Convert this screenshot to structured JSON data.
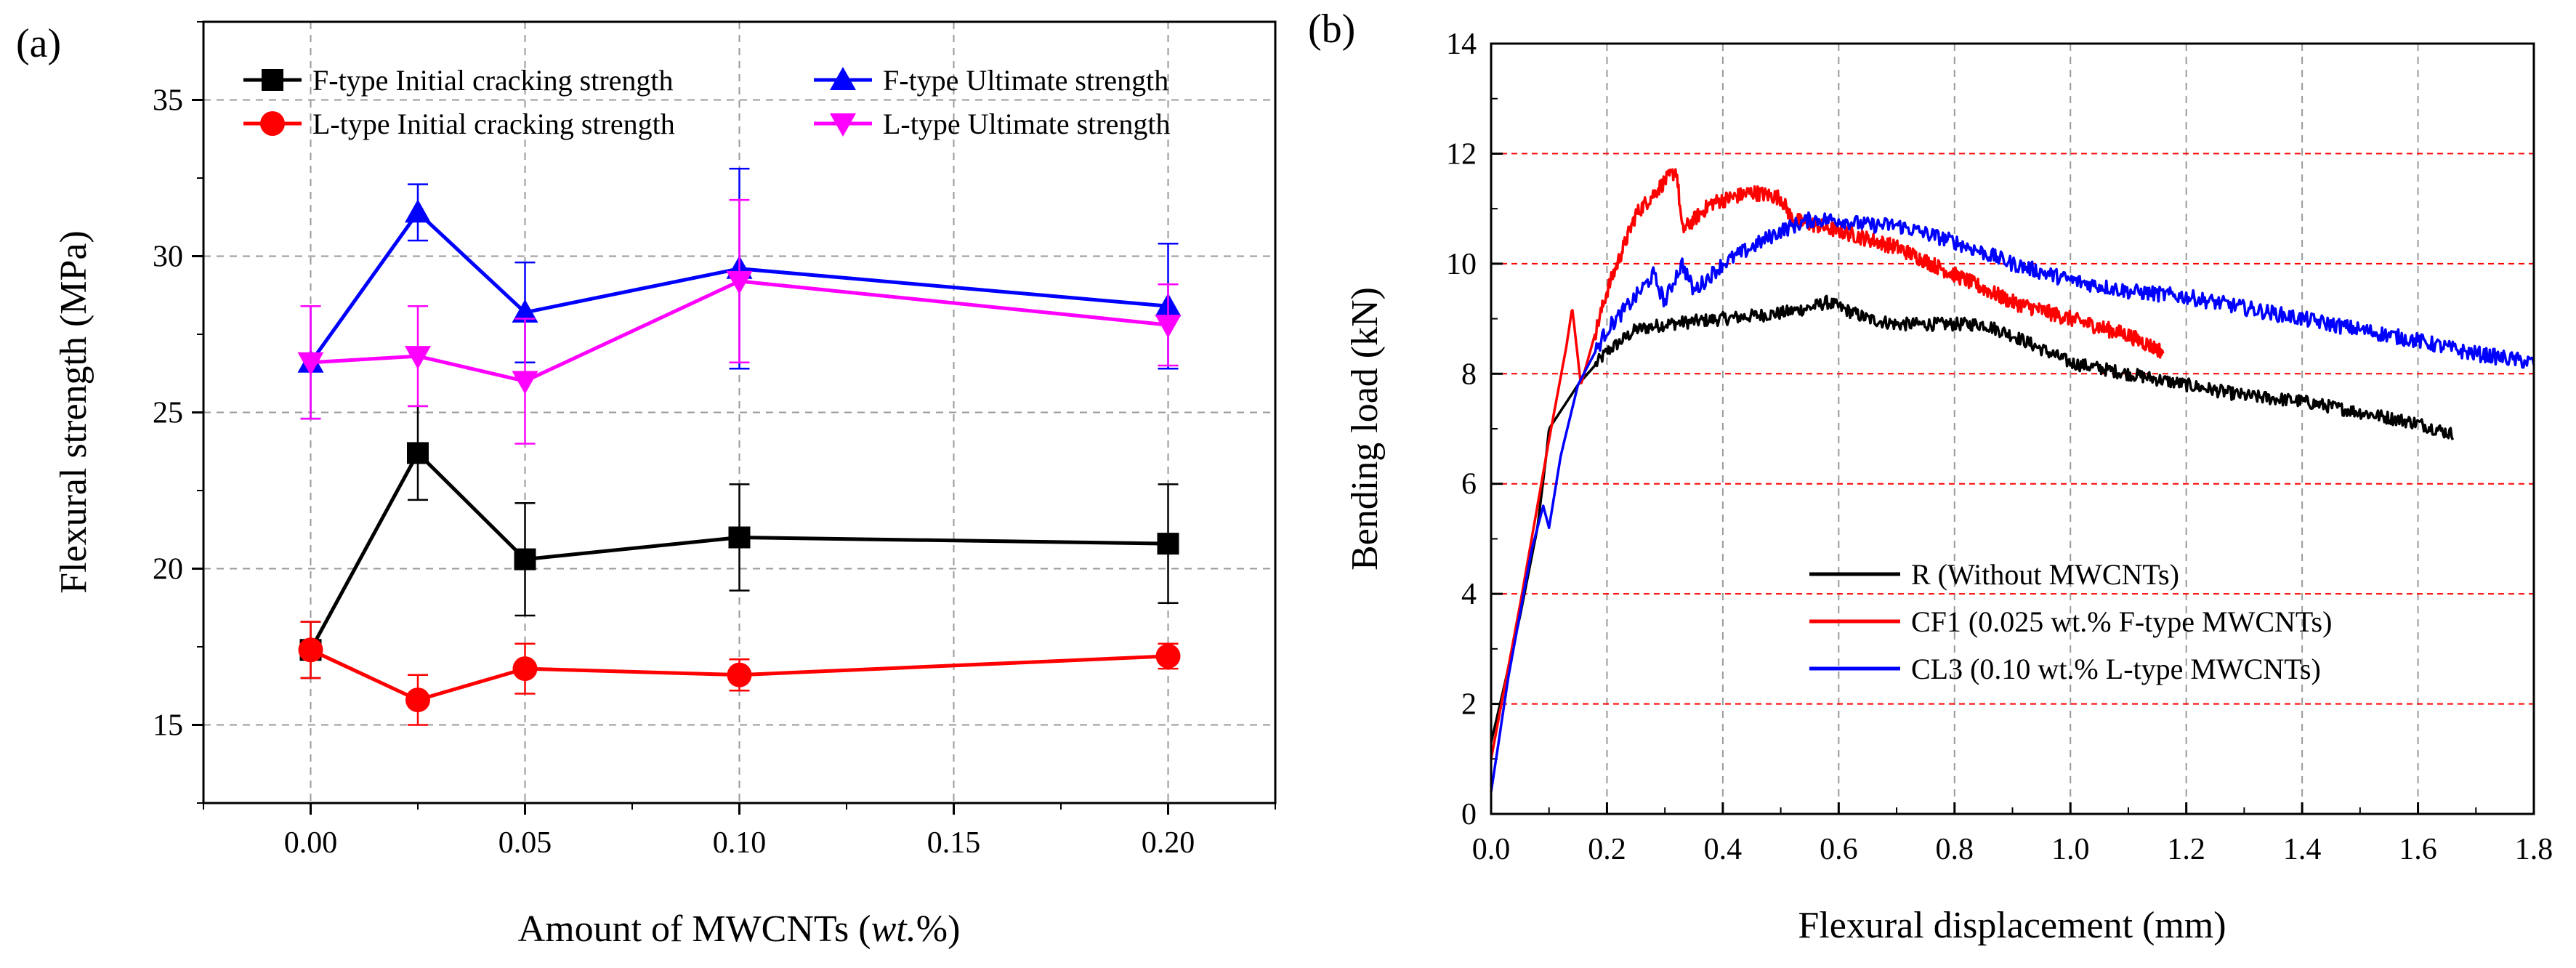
{
  "chart_data": [
    {
      "panel_label": "(a)",
      "type": "line",
      "xlabel_prefix": "Amount of MWCNTs (",
      "xlabel_italic": "wt.",
      "xlabel_suffix": "%)",
      "ylabel": "Flexural strength (MPa)",
      "xlim": [
        -0.025,
        0.225
      ],
      "ylim": [
        12.5,
        37.5
      ],
      "xticks": [
        0.0,
        0.05,
        0.1,
        0.15,
        0.2
      ],
      "xtick_labels": [
        "0.00",
        "0.05",
        "0.10",
        "0.15",
        "0.20"
      ],
      "yticks": [
        15,
        20,
        25,
        30,
        35
      ],
      "ytick_labels": [
        "15",
        "20",
        "25",
        "30",
        "35"
      ],
      "grid": true,
      "legend_position": "top",
      "x": [
        0.0,
        0.025,
        0.05,
        0.1,
        0.2
      ],
      "series": [
        {
          "name": "F-type Initial cracking strength",
          "color": "#000000",
          "marker": "square",
          "values": [
            17.4,
            23.7,
            20.3,
            21.0,
            20.8
          ],
          "errors": [
            0.9,
            1.5,
            1.8,
            1.7,
            1.9
          ]
        },
        {
          "name": "L-type Initial cracking strength",
          "color": "#ff0000",
          "marker": "circle",
          "values": [
            17.4,
            15.8,
            16.8,
            16.6,
            17.2
          ],
          "errors": [
            0.9,
            0.8,
            0.8,
            0.5,
            0.4
          ]
        },
        {
          "name": "F-type Ultimate strength",
          "color": "#0000ff",
          "marker": "triangle-up",
          "values": [
            26.6,
            31.4,
            28.2,
            29.6,
            28.4
          ],
          "errors": [
            1.8,
            0.9,
            1.6,
            3.2,
            2.0
          ]
        },
        {
          "name": "L-type Ultimate strength",
          "color": "#ff00ff",
          "marker": "triangle-down",
          "values": [
            26.6,
            26.8,
            26.0,
            29.2,
            27.8
          ],
          "errors": [
            1.8,
            1.6,
            2.0,
            2.6,
            1.3
          ]
        }
      ]
    },
    {
      "panel_label": "(b)",
      "type": "line",
      "xlabel": "Flexural displacement (mm)",
      "ylabel": "Bending load (kN)",
      "xlim": [
        0.0,
        1.8
      ],
      "ylim": [
        0,
        14
      ],
      "xticks": [
        0.0,
        0.2,
        0.4,
        0.6,
        0.8,
        1.0,
        1.2,
        1.4,
        1.6,
        1.8
      ],
      "xtick_labels": [
        "0.0",
        "0.2",
        "0.4",
        "0.6",
        "0.8",
        "1.0",
        "1.2",
        "1.4",
        "1.6",
        "1.8"
      ],
      "yticks": [
        0,
        2,
        4,
        6,
        8,
        10,
        12,
        14
      ],
      "ytick_labels": [
        "0",
        "2",
        "4",
        "6",
        "8",
        "10",
        "12",
        "14"
      ],
      "grid": true,
      "legend_position": "bottom-right",
      "series": [
        {
          "name": "R (Without MWCNTs)",
          "color": "#000000",
          "noise": 0.12,
          "x": [
            0.0,
            0.02,
            0.05,
            0.08,
            0.095,
            0.1,
            0.15,
            0.2,
            0.25,
            0.3,
            0.4,
            0.5,
            0.55,
            0.58,
            0.65,
            0.7,
            0.8,
            0.85,
            0.9,
            1.0,
            1.1,
            1.2,
            1.3,
            1.4,
            1.5,
            1.6,
            1.66
          ],
          "y": [
            1.3,
            2.2,
            3.6,
            5.2,
            6.5,
            7.0,
            7.8,
            8.4,
            8.8,
            8.9,
            9.0,
            9.1,
            9.2,
            9.3,
            9.0,
            8.9,
            8.9,
            8.9,
            8.7,
            8.2,
            8.0,
            7.8,
            7.6,
            7.5,
            7.3,
            7.1,
            6.9
          ]
        },
        {
          "name": "CF1 (0.025 wt.% F-type MWCNTs)",
          "color": "#ff0000",
          "noise": 0.14,
          "x": [
            0.0,
            0.05,
            0.1,
            0.13,
            0.14,
            0.155,
            0.2,
            0.25,
            0.3,
            0.32,
            0.33,
            0.38,
            0.45,
            0.5,
            0.52,
            0.6,
            0.7,
            0.8,
            0.9,
            1.0,
            1.1,
            1.16
          ],
          "y": [
            1.0,
            3.8,
            6.8,
            8.5,
            9.2,
            7.8,
            9.5,
            10.9,
            11.5,
            11.7,
            10.6,
            11.1,
            11.3,
            11.2,
            10.8,
            10.6,
            10.3,
            9.8,
            9.3,
            9.0,
            8.7,
            8.4
          ]
        },
        {
          "name": "CL3 (0.10 wt.% L-type MWCNTs)",
          "color": "#0000ff",
          "noise": 0.14,
          "x": [
            0.0,
            0.03,
            0.07,
            0.09,
            0.1,
            0.12,
            0.15,
            0.2,
            0.25,
            0.28,
            0.3,
            0.32,
            0.33,
            0.35,
            0.4,
            0.45,
            0.5,
            0.55,
            0.6,
            0.65,
            0.7,
            0.8,
            0.9,
            1.0,
            1.1,
            1.2,
            1.3,
            1.4,
            1.5,
            1.6,
            1.68,
            1.8
          ],
          "y": [
            0.4,
            2.5,
            4.8,
            5.6,
            5.2,
            6.5,
            7.8,
            8.8,
            9.4,
            9.8,
            9.3,
            9.8,
            10.0,
            9.5,
            10.0,
            10.3,
            10.6,
            10.8,
            10.8,
            10.7,
            10.7,
            10.4,
            10.0,
            9.7,
            9.5,
            9.4,
            9.2,
            9.0,
            8.8,
            8.6,
            8.4,
            8.2
          ]
        }
      ]
    }
  ]
}
